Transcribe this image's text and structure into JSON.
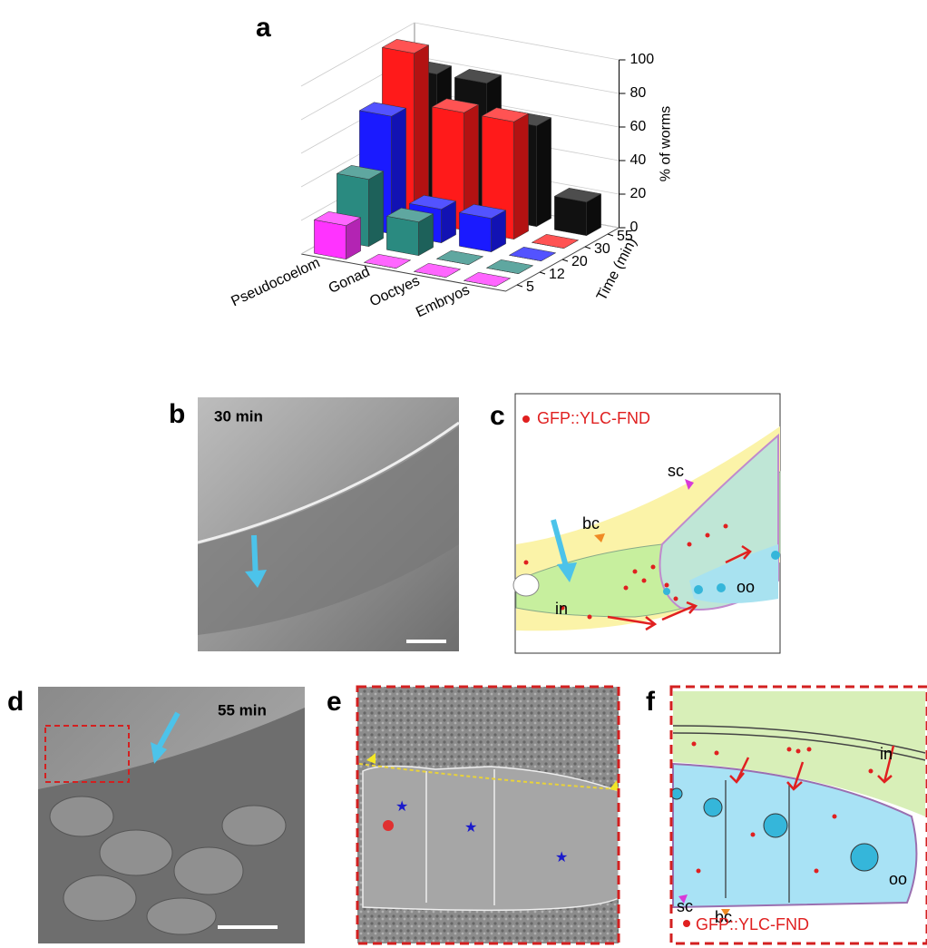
{
  "chart_data": {
    "type": "bar3d",
    "title": "a",
    "categories": [
      "Pseudocoelom",
      "Gonad",
      "Ooctyes",
      "Embryos"
    ],
    "series": [
      {
        "name": "5",
        "color": "#ff33ff",
        "values": [
          20,
          0,
          0,
          0
        ]
      },
      {
        "name": "12",
        "color": "#2a8a80",
        "values": [
          40,
          20,
          0,
          0
        ]
      },
      {
        "name": "20",
        "color": "#1a1aff",
        "values": [
          70,
          20,
          20,
          0
        ]
      },
      {
        "name": "30",
        "color": "#ff1a1a",
        "values": [
          100,
          70,
          70,
          0
        ]
      },
      {
        "name": "55",
        "color": "#111111",
        "values": [
          80,
          80,
          60,
          20
        ]
      }
    ],
    "ylabel": "% of worms",
    "depth_label": "Time (min)",
    "ylim": [
      0,
      100
    ],
    "yticks": [
      0,
      20,
      40,
      60,
      80,
      100
    ]
  },
  "panels": {
    "b": {
      "label": "b",
      "time": "30 min"
    },
    "c": {
      "label": "c",
      "legend": "GFP::YLC-FND",
      "bc": "bc",
      "sc": "sc",
      "in": "in",
      "oo": "oo"
    },
    "d": {
      "label": "d",
      "time": "55 min"
    },
    "e": {
      "label": "e"
    },
    "f": {
      "label": "f",
      "in": "in",
      "sc": "sc",
      "bc": "bc",
      "oo": "oo",
      "legend": "GFP::YLC-FND"
    }
  }
}
